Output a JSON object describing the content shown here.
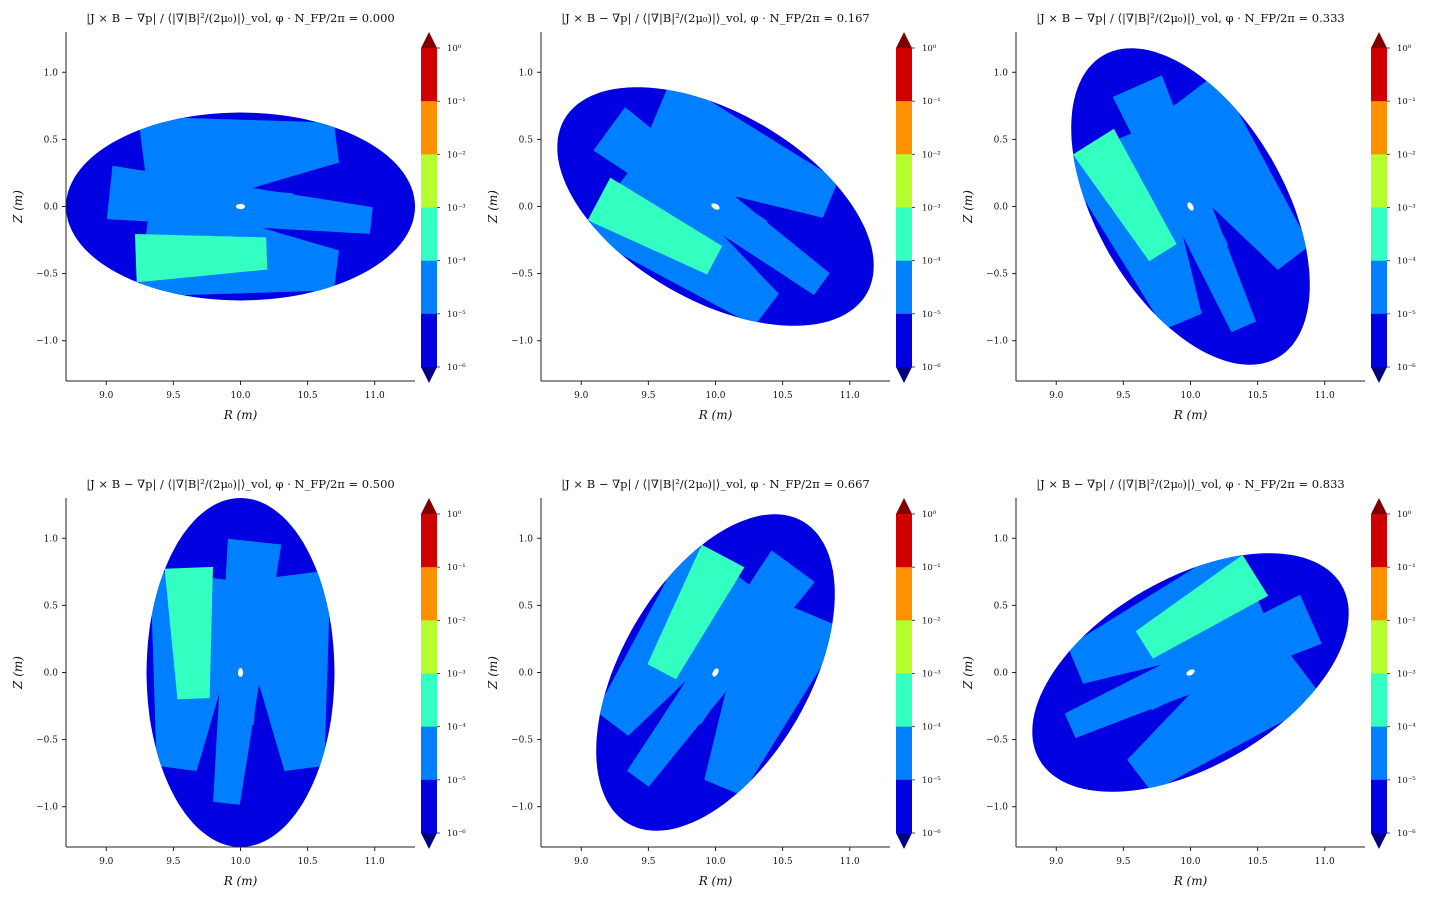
{
  "figure": {
    "metric_label": "|J × B − ∇p| / ⟨|∇|B|²/(2μ₀)|⟩_vol",
    "phi_label": "φ · N_FP/2π ="
  },
  "chart_data": [
    {
      "type": "contour",
      "title": "|J × B − ∇p| / ⟨|∇|B|²/(2μ₀)|⟩_vol,  φ · N_FP/2π = 0.000",
      "phi": 0.0,
      "tilt_deg": 0,
      "xlabel": "R (m)",
      "ylabel": "Z (m)",
      "xlim": [
        8.7,
        11.3
      ],
      "ylim": [
        -1.3,
        1.3
      ],
      "xticks": [
        9.0,
        9.5,
        10.0,
        10.5,
        11.0
      ],
      "yticks": [
        -1.0,
        -0.5,
        0.0,
        0.5,
        1.0
      ],
      "boundary": {
        "center": [
          10.0,
          0.0
        ],
        "semi_axes": [
          1.3,
          0.7
        ]
      },
      "axis_hole": [
        10.0,
        0.0
      ]
    },
    {
      "type": "contour",
      "title": "|J × B − ∇p| / ⟨|∇|B|²/(2μ₀)|⟩_vol,  φ · N_FP/2π = 0.167",
      "phi": 0.167,
      "tilt_deg": -30,
      "xlabel": "R (m)",
      "ylabel": "Z (m)",
      "xlim": [
        8.7,
        11.3
      ],
      "ylim": [
        -1.3,
        1.3
      ],
      "xticks": [
        9.0,
        9.5,
        10.0,
        10.5,
        11.0
      ],
      "yticks": [
        -1.0,
        -0.5,
        0.0,
        0.5,
        1.0
      ],
      "boundary": {
        "center": [
          10.0,
          0.0
        ],
        "semi_axes": [
          1.3,
          0.7
        ]
      },
      "axis_hole": [
        10.0,
        0.0
      ]
    },
    {
      "type": "contour",
      "title": "|J × B − ∇p| / ⟨|∇|B|²/(2μ₀)|⟩_vol,  φ · N_FP/2π = 0.333",
      "phi": 0.333,
      "tilt_deg": -60,
      "xlabel": "R (m)",
      "ylabel": "Z (m)",
      "xlim": [
        8.7,
        11.3
      ],
      "ylim": [
        -1.3,
        1.3
      ],
      "xticks": [
        9.0,
        9.5,
        10.0,
        10.5,
        11.0
      ],
      "yticks": [
        -1.0,
        -0.5,
        0.0,
        0.5,
        1.0
      ],
      "boundary": {
        "center": [
          10.0,
          0.0
        ],
        "semi_axes": [
          1.3,
          0.7
        ]
      },
      "axis_hole": [
        10.0,
        0.0
      ]
    },
    {
      "type": "contour",
      "title": "|J × B − ∇p| / ⟨|∇|B|²/(2μ₀)|⟩_vol,  φ · N_FP/2π = 0.500",
      "phi": 0.5,
      "tilt_deg": -90,
      "xlabel": "R (m)",
      "ylabel": "Z (m)",
      "xlim": [
        8.7,
        11.3
      ],
      "ylim": [
        -1.3,
        1.3
      ],
      "xticks": [
        9.0,
        9.5,
        10.0,
        10.5,
        11.0
      ],
      "yticks": [
        -1.0,
        -0.5,
        0.0,
        0.5,
        1.0
      ],
      "boundary": {
        "center": [
          10.0,
          0.0
        ],
        "semi_axes": [
          1.3,
          0.7
        ]
      },
      "axis_hole": [
        10.0,
        0.0
      ]
    },
    {
      "type": "contour",
      "title": "|J × B − ∇p| / ⟨|∇|B|²/(2μ₀)|⟩_vol,  φ · N_FP/2π = 0.667",
      "phi": 0.667,
      "tilt_deg": -120,
      "xlabel": "R (m)",
      "ylabel": "Z (m)",
      "xlim": [
        8.7,
        11.3
      ],
      "ylim": [
        -1.3,
        1.3
      ],
      "xticks": [
        9.0,
        9.5,
        10.0,
        10.5,
        11.0
      ],
      "yticks": [
        -1.0,
        -0.5,
        0.0,
        0.5,
        1.0
      ],
      "boundary": {
        "center": [
          10.0,
          0.0
        ],
        "semi_axes": [
          1.3,
          0.7
        ]
      },
      "axis_hole": [
        10.0,
        0.0
      ]
    },
    {
      "type": "contour",
      "title": "|J × B − ∇p| / ⟨|∇|B|²/(2μ₀)|⟩_vol,  φ · N_FP/2π = 0.833",
      "phi": 0.833,
      "tilt_deg": -150,
      "xlabel": "R (m)",
      "ylabel": "Z (m)",
      "xlim": [
        8.7,
        11.3
      ],
      "ylim": [
        -1.3,
        1.3
      ],
      "xticks": [
        9.0,
        9.5,
        10.0,
        10.5,
        11.0
      ],
      "yticks": [
        -1.0,
        -0.5,
        0.0,
        0.5,
        1.0
      ],
      "boundary": {
        "center": [
          10.0,
          0.0
        ],
        "semi_axes": [
          1.3,
          0.7
        ]
      },
      "axis_hole": [
        10.0,
        0.0
      ]
    }
  ],
  "colorbar": {
    "scale": "log",
    "range": [
      1e-06,
      1
    ],
    "levels": [
      "10⁰",
      "10⁻¹",
      "10⁻²",
      "10⁻³",
      "10⁻⁴",
      "10⁻⁵",
      "10⁻⁶"
    ],
    "colors": [
      "#d00000",
      "#ff9100",
      "#b6ff2e",
      "#33ffc0",
      "#0080ff",
      "#0000e0"
    ],
    "over_color": "#800000",
    "under_color": "#000080",
    "background_color": "#0000e0"
  },
  "contour_bands": [
    {
      "level": "10⁻⁵",
      "color": "#0080ff",
      "u": [
        -0.55,
        0.55
      ],
      "v": [
        0.42,
        0.68
      ],
      "r": [
        0.38,
        0.15
      ]
    },
    {
      "level": "10⁻⁵",
      "color": "#0080ff",
      "u": [
        -0.55,
        0.55
      ],
      "v": [
        -0.42,
        -0.68
      ],
      "r": [
        0.38,
        0.15
      ]
    },
    {
      "level": "10⁻⁵",
      "color": "#0080ff",
      "u": [
        -0.75,
        0.75
      ],
      "v": [
        0.15,
        -0.15
      ],
      "r": [
        0.2,
        0.1
      ]
    },
    {
      "level": "10⁻⁵",
      "color": "#0080ff",
      "u": [
        -0.2,
        0.3
      ],
      "v": [
        0.0,
        0.0
      ],
      "r": [
        0.14,
        0.1
      ]
    },
    {
      "level": "10⁻⁴",
      "color": "#33ffc0",
      "u": [
        -0.6,
        0.15
      ],
      "v": [
        -0.55,
        -0.5
      ],
      "r": [
        0.18,
        0.12
      ]
    }
  ]
}
